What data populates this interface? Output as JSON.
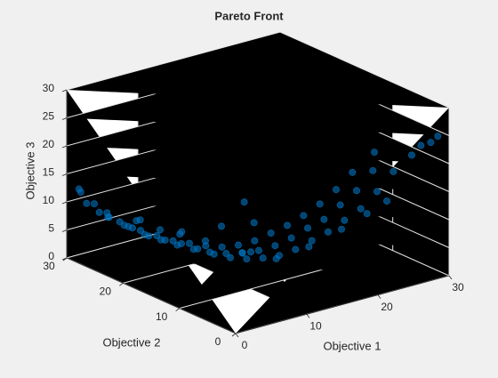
{
  "chart_data": {
    "type": "scatter3",
    "title": "Pareto Front",
    "xlabel": "Objective 1",
    "ylabel": "Objective 2",
    "zlabel": "Objective 3",
    "color": "#0072bd",
    "grid": true,
    "xlim": [
      0,
      30
    ],
    "ylim": [
      0,
      30
    ],
    "zlim": [
      0,
      30
    ],
    "xticks": [
      0,
      10,
      20,
      30
    ],
    "yticks": [
      0,
      10,
      20,
      30
    ],
    "zticks": [
      0,
      5,
      10,
      15,
      20,
      25,
      30
    ],
    "x": [
      0.3,
      0.4,
      1.5,
      2,
      2.5,
      3,
      3.5,
      4,
      4.5,
      5,
      5.5,
      6,
      6.5,
      7,
      7.5,
      8,
      8.5,
      9,
      9.5,
      10,
      10.5,
      11,
      11.5,
      12,
      12.5,
      13,
      13.5,
      14,
      14.5,
      15,
      15.5,
      16,
      16.5,
      17,
      17.5,
      18,
      18.5,
      19,
      19.5,
      20,
      20.5,
      21,
      21.5,
      22,
      22.5,
      23,
      23.5,
      24,
      24.5,
      25,
      25.5,
      26,
      26.5,
      27,
      27.5,
      28,
      28.5,
      29,
      29.5,
      30,
      30,
      29.8,
      14,
      12,
      10,
      16,
      19,
      8,
      6,
      22,
      13,
      17,
      20,
      9,
      4,
      24,
      26,
      21
    ],
    "y": [
      28.2,
      28,
      27,
      29,
      26,
      28,
      25,
      27.5,
      24,
      29,
      26,
      23,
      28,
      25,
      22,
      27,
      24,
      21,
      26,
      23,
      20,
      25,
      22,
      19,
      24,
      21,
      18,
      23,
      20,
      17,
      22,
      19,
      16,
      21,
      18,
      15,
      20,
      17,
      14,
      19,
      16,
      13,
      18,
      15,
      12,
      17,
      14,
      11,
      16,
      13,
      10,
      15,
      12,
      9,
      14,
      11,
      8,
      12,
      6,
      5,
      2,
      3,
      15,
      14,
      18,
      13,
      11,
      20,
      21,
      9,
      26,
      24,
      22,
      29,
      22,
      7,
      6,
      25
    ],
    "z": [
      13,
      12.5,
      10.5,
      9.5,
      9,
      8,
      7.5,
      7,
      6.5,
      6,
      5.5,
      5,
      4.5,
      4,
      4.2,
      3.5,
      3,
      3.5,
      2.5,
      2,
      2.5,
      1.5,
      1.2,
      1.5,
      1,
      0.6,
      0.8,
      0.5,
      0.3,
      0.5,
      0.2,
      0.3,
      0.6,
      0.5,
      0.7,
      1,
      1.2,
      1.5,
      2,
      2.5,
      2.8,
      3.5,
      3.8,
      4.5,
      5,
      5.5,
      6,
      7,
      7.5,
      8.5,
      9,
      10,
      11,
      12,
      13,
      14.5,
      15.5,
      17,
      19,
      21,
      24,
      22.5,
      3,
      4,
      5,
      2,
      4,
      6,
      7,
      7,
      2,
      2.5,
      3,
      4,
      9,
      10,
      12,
      5
    ]
  }
}
